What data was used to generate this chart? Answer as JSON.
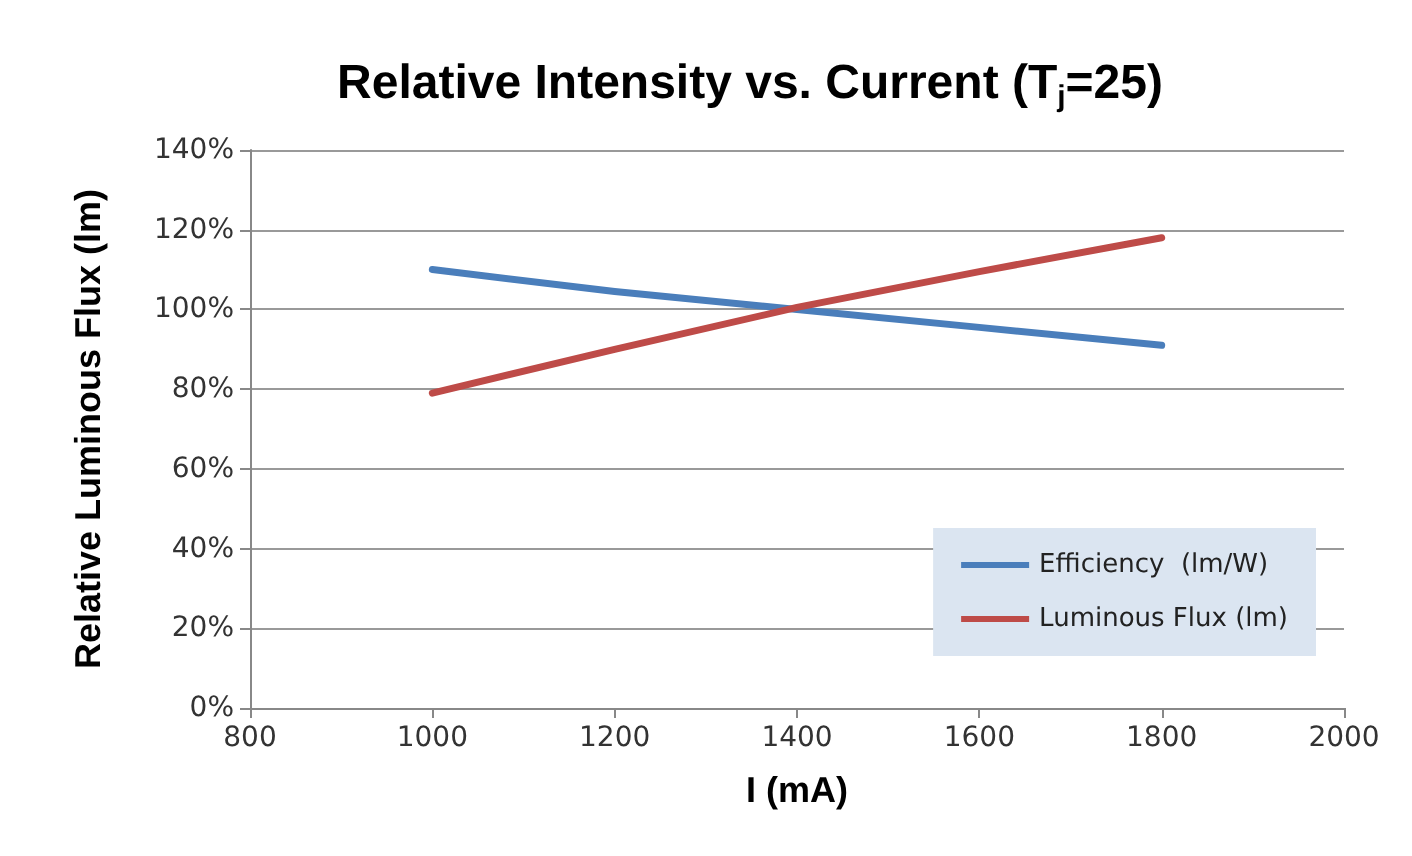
{
  "chart_data": {
    "type": "line",
    "title": "Relative Intensity vs. Current (T$_{j}$=25)",
    "xlabel": "I (mA)",
    "ylabel": "Relative Luminous Flux (lm)",
    "x": [
      1000,
      1200,
      1400,
      1600,
      1800
    ],
    "series": [
      {
        "name": "Efficiency  (lm/W)",
        "color": "#4a7ebb",
        "values": [
          110,
          104.5,
          100,
          95.5,
          91
        ]
      },
      {
        "name": "Luminous Flux (lm)",
        "color": "#be4b48",
        "values": [
          79,
          90,
          100.5,
          109.5,
          118
        ]
      }
    ],
    "xlim": [
      800,
      2000
    ],
    "xticks": [
      800,
      1000,
      1200,
      1400,
      1600,
      1800,
      2000
    ],
    "ylim": [
      0,
      140
    ],
    "yticks": [
      {
        "value": 0,
        "label": "0%"
      },
      {
        "value": 20,
        "label": "20%"
      },
      {
        "value": 40,
        "label": "40%"
      },
      {
        "value": 60,
        "label": "60%"
      },
      {
        "value": 80,
        "label": "80%"
      },
      {
        "value": 100,
        "label": "100%"
      },
      {
        "value": 120,
        "label": "120%"
      },
      {
        "value": 140,
        "label": "140%"
      }
    ],
    "grid": "y",
    "legend": "bottom right",
    "marker": "none",
    "line_style": "solid"
  }
}
